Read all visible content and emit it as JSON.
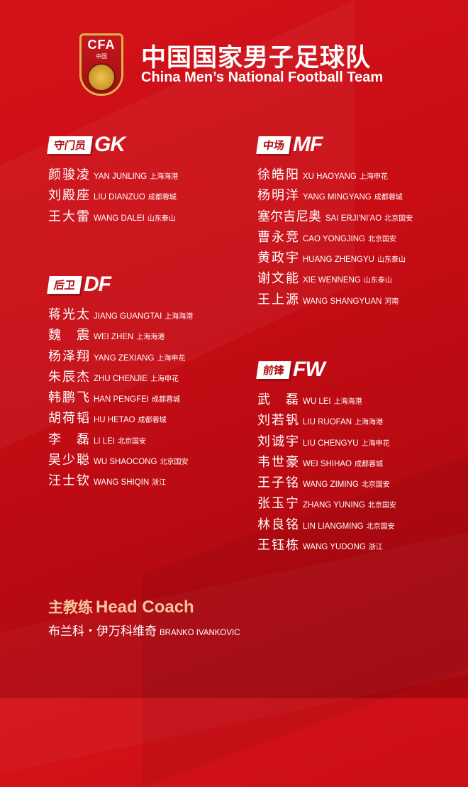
{
  "header": {
    "logo_text": "CFA",
    "logo_sub": "中国",
    "title_cn": "中国国家男子足球队",
    "title_en": "China Men’s National Football Team"
  },
  "sections": {
    "gk": {
      "label": "守门员",
      "code": "GK",
      "players": [
        {
          "cn": "颜骏凌",
          "en": "YAN JUNLING",
          "club": "上海海港"
        },
        {
          "cn": "刘殿座",
          "en": "LIU DIANZUO",
          "club": "成都蓉城"
        },
        {
          "cn": "王大雷",
          "en": "WANG DALEI",
          "club": "山东泰山"
        }
      ]
    },
    "df": {
      "label": "后卫",
      "code": "DF",
      "players": [
        {
          "cn": "蒋光太",
          "en": "JIANG GUANGTAI",
          "club": "上海海港"
        },
        {
          "cn": "魏震",
          "en": "WEI ZHEN",
          "club": "上海海港"
        },
        {
          "cn": "杨泽翔",
          "en": "YANG ZEXIANG",
          "club": "上海申花"
        },
        {
          "cn": "朱辰杰",
          "en": "ZHU CHENJIE",
          "club": "上海申花"
        },
        {
          "cn": "韩鹏飞",
          "en": "HAN PENGFEI",
          "club": "成都蓉城"
        },
        {
          "cn": "胡荷韬",
          "en": "HU HETAO",
          "club": "成都蓉城"
        },
        {
          "cn": "李磊",
          "en": "LI LEI",
          "club": "北京国安"
        },
        {
          "cn": "吴少聪",
          "en": "WU SHAOCONG",
          "club": "北京国安"
        },
        {
          "cn": "汪士钦",
          "en": "WANG SHIQIN",
          "club": "浙江"
        }
      ]
    },
    "mf": {
      "label": "中场",
      "code": "MF",
      "players": [
        {
          "cn": "徐皓阳",
          "en": "XU HAOYANG",
          "club": "上海申花"
        },
        {
          "cn": "杨明洋",
          "en": "YANG MINGYANG",
          "club": "成都蓉城"
        },
        {
          "cn": "塞尔吉尼奥",
          "en": "SAI ERJI'NI'AO",
          "club": "北京国安"
        },
        {
          "cn": "曹永竞",
          "en": "CAO YONGJING",
          "club": "北京国安"
        },
        {
          "cn": "黄政宇",
          "en": "HUANG ZHENGYU",
          "club": "山东泰山"
        },
        {
          "cn": "谢文能",
          "en": "XIE WENNENG",
          "club": "山东泰山"
        },
        {
          "cn": "王上源",
          "en": "WANG SHANGYUAN",
          "club": "河南"
        }
      ]
    },
    "fw": {
      "label": "前锋",
      "code": "FW",
      "players": [
        {
          "cn": "武磊",
          "en": "WU LEI",
          "club": "上海海港"
        },
        {
          "cn": "刘若钒",
          "en": "LIU RUOFAN",
          "club": "上海海港"
        },
        {
          "cn": "刘诚宇",
          "en": "LIU CHENGYU",
          "club": "上海申花"
        },
        {
          "cn": "韦世豪",
          "en": "WEI SHIHAO",
          "club": "成都蓉城"
        },
        {
          "cn": "王子铭",
          "en": "WANG ZIMING",
          "club": "北京国安"
        },
        {
          "cn": "张玉宁",
          "en": "ZHANG YUNING",
          "club": "北京国安"
        },
        {
          "cn": "林良铭",
          "en": "LIN LIANGMING",
          "club": "北京国安"
        },
        {
          "cn": "王钰栋",
          "en": "WANG YUDONG",
          "club": "浙江"
        }
      ]
    }
  },
  "coach": {
    "label_cn": "主教练",
    "label_en": "Head Coach",
    "name_cn": "布兰科・伊万科维奇",
    "name_en": "BRANKO IVANKOVIC"
  },
  "colors": {
    "background": "#c80d15",
    "accent": "#f6c79c",
    "logo_gold": "#e0b24a"
  }
}
